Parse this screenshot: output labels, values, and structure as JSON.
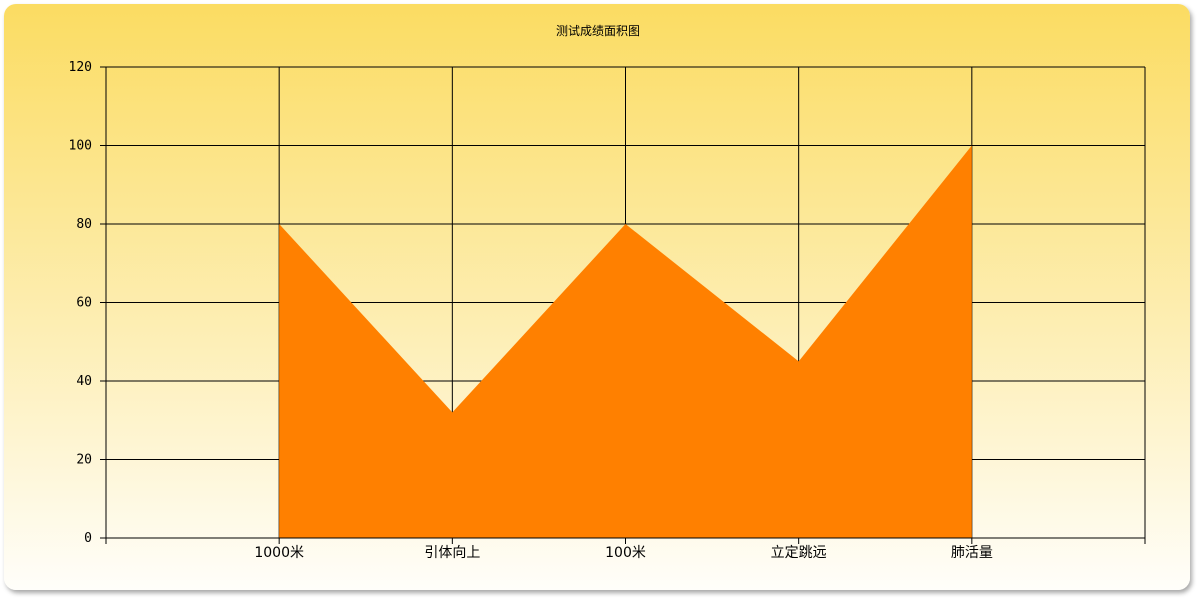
{
  "chart_data": {
    "type": "area",
    "title": "测试成绩面积图",
    "categories": [
      "1000米",
      "引体向上",
      "100米",
      "立定跳远",
      "肺活量"
    ],
    "values": [
      80,
      32,
      80,
      45,
      100
    ],
    "xlabel": "",
    "ylabel": "",
    "ylim": [
      0,
      120
    ],
    "yticks": [
      0,
      20,
      40,
      60,
      80,
      100,
      120
    ],
    "grid": true,
    "fill_color": "#ff8000",
    "background_top": "#fbdc62",
    "background_bottom": "#fffefa"
  }
}
